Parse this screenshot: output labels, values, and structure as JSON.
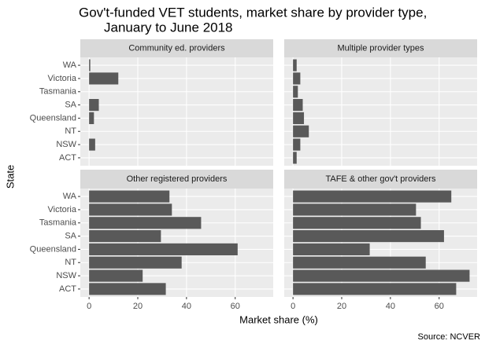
{
  "chart_data": {
    "type": "bar",
    "orientation": "horizontal",
    "title": [
      "Gov't-funded VET students, market share by provider type,",
      "January to June 2018"
    ],
    "x_label": "Market share (%)",
    "y_label": "State",
    "caption": "Source: NCVER",
    "color": "#595959",
    "grid": true,
    "categories": [
      "WA",
      "Victoria",
      "Tasmania",
      "SA",
      "Queensland",
      "NT",
      "NSW",
      "ACT"
    ],
    "xlim": [
      -3.6,
      75.6
    ],
    "xticks": [
      0,
      20,
      40,
      60
    ],
    "facets": [
      {
        "title": "Community ed. providers",
        "values": [
          0.5,
          12,
          0,
          4,
          2,
          0,
          2.5,
          0
        ]
      },
      {
        "title": "Multiple provider types",
        "values": [
          1.5,
          3,
          2,
          4,
          4.5,
          6.5,
          3,
          1.5
        ]
      },
      {
        "title": "Other registered providers",
        "values": [
          33,
          34,
          46,
          29.5,
          61,
          38,
          22,
          31.5
        ]
      },
      {
        "title": "TAFE & other gov't providers",
        "values": [
          65,
          50.5,
          52.5,
          62,
          31.5,
          54.5,
          72.5,
          67
        ]
      }
    ]
  }
}
